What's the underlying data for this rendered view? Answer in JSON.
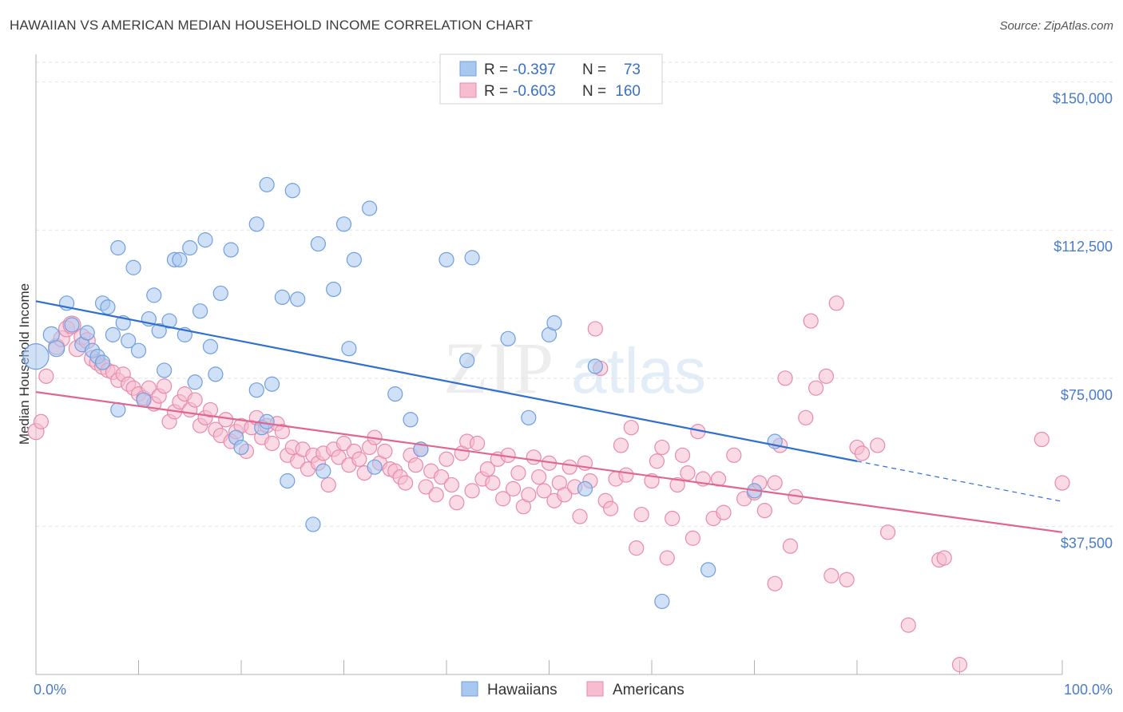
{
  "header": {
    "title": "HAWAIIAN VS AMERICAN MEDIAN HOUSEHOLD INCOME CORRELATION CHART",
    "source": "Source: ZipAtlas.com"
  },
  "legend_top": {
    "rows": [
      {
        "r_label": "R =",
        "r_value": "-0.397",
        "n_label": "N =",
        "n_value": "73"
      },
      {
        "r_label": "R =",
        "r_value": "-0.603",
        "n_label": "N =",
        "n_value": "160"
      }
    ]
  },
  "watermark": {
    "zip": "ZIP",
    "atlas": "atlas"
  },
  "colors": {
    "hawaiians_fill": "#a9c8f0",
    "hawaiians_stroke": "#6f9fe0",
    "hawaiians_line": "#2e6fd0",
    "americans_fill": "#f6bcd0",
    "americans_stroke": "#e98aaa",
    "americans_line": "#e06690"
  },
  "chart_data": {
    "type": "scatter",
    "title": "HAWAIIAN VS AMERICAN MEDIAN HOUSEHOLD INCOME CORRELATION CHART",
    "xlabel": "",
    "ylabel": "Median Household Income",
    "xlim": [
      0,
      100
    ],
    "ylim": [
      0,
      157000
    ],
    "y_ticks": [
      {
        "value": 37500,
        "label": "$37,500"
      },
      {
        "value": 75000,
        "label": "$75,000"
      },
      {
        "value": 112500,
        "label": "$112,500"
      },
      {
        "value": 150000,
        "label": "$150,000"
      }
    ],
    "x_tick_labels": {
      "left": "0.0%",
      "right": "100.0%"
    },
    "grid": true,
    "legend_position": "bottom",
    "series": [
      {
        "name": "Hawaiians",
        "r": -0.397,
        "n": 73,
        "trend": {
          "x0": 0,
          "y0": 94500,
          "x1": 80,
          "y1": 54000,
          "dash_to": 100,
          "dash_y": 43800
        },
        "points": [
          [
            0,
            80500,
            16
          ],
          [
            1.5,
            86000,
            10
          ],
          [
            2,
            82500,
            10
          ],
          [
            3,
            94000,
            9
          ],
          [
            3.5,
            88500,
            9
          ],
          [
            4.5,
            83500,
            9
          ],
          [
            5,
            86500,
            9
          ],
          [
            5.5,
            82000,
            9
          ],
          [
            6,
            80500,
            9
          ],
          [
            6.5,
            79000,
            9
          ],
          [
            6.5,
            94000,
            9
          ],
          [
            7,
            93000,
            9
          ],
          [
            7.5,
            86000,
            9
          ],
          [
            8,
            67000,
            9
          ],
          [
            8,
            108000,
            9
          ],
          [
            8.5,
            89000,
            9
          ],
          [
            9,
            84500,
            9
          ],
          [
            9.5,
            103000,
            9
          ],
          [
            10,
            82000,
            9
          ],
          [
            11,
            90000,
            9
          ],
          [
            10.5,
            69500,
            9
          ],
          [
            12,
            87000,
            9
          ],
          [
            11.5,
            96000,
            9
          ],
          [
            12.5,
            77000,
            9
          ],
          [
            13,
            89500,
            9
          ],
          [
            13.5,
            105000,
            9
          ],
          [
            14,
            105000,
            9
          ],
          [
            14.5,
            86000,
            9
          ],
          [
            15,
            108000,
            9
          ],
          [
            15.5,
            74000,
            9
          ],
          [
            16,
            92000,
            9
          ],
          [
            16.5,
            110000,
            9
          ],
          [
            17,
            83000,
            9
          ],
          [
            17.5,
            76000,
            9
          ],
          [
            18,
            96500,
            9
          ],
          [
            19,
            107500,
            9
          ],
          [
            19.5,
            60000,
            9
          ],
          [
            20,
            57500,
            9
          ],
          [
            21.5,
            72000,
            9
          ],
          [
            21.5,
            114000,
            9
          ],
          [
            22,
            62500,
            9
          ],
          [
            22.5,
            64000,
            9
          ],
          [
            22.5,
            124000,
            9
          ],
          [
            23,
            73500,
            9
          ],
          [
            24,
            95500,
            9
          ],
          [
            24.5,
            49000,
            9
          ],
          [
            25,
            122500,
            9
          ],
          [
            25.5,
            95000,
            9
          ],
          [
            27,
            38000,
            9
          ],
          [
            27.5,
            109000,
            9
          ],
          [
            28,
            51500,
            9
          ],
          [
            29,
            97500,
            9
          ],
          [
            30,
            114000,
            9
          ],
          [
            30.5,
            82500,
            9
          ],
          [
            31,
            105000,
            9
          ],
          [
            32.5,
            118000,
            9
          ],
          [
            33,
            52500,
            9
          ],
          [
            35,
            71000,
            9
          ],
          [
            36.5,
            64500,
            9
          ],
          [
            37.5,
            57000,
            9
          ],
          [
            40,
            105000,
            9
          ],
          [
            42,
            79500,
            9
          ],
          [
            42.5,
            105500,
            9
          ],
          [
            46,
            85000,
            9
          ],
          [
            48,
            65000,
            9
          ],
          [
            50,
            86000,
            9
          ],
          [
            50.5,
            89000,
            9
          ],
          [
            53.5,
            47000,
            9
          ],
          [
            54.5,
            78000,
            9
          ],
          [
            61,
            18500,
            9
          ],
          [
            65.5,
            26500,
            9
          ],
          [
            70,
            46500,
            9
          ],
          [
            72,
            59000,
            9
          ]
        ]
      },
      {
        "name": "Americans",
        "r": -0.603,
        "n": 160,
        "trend": {
          "x0": 0,
          "y0": 71500,
          "x1": 100,
          "y1": 36000
        },
        "points": [
          [
            0,
            61500,
            10
          ],
          [
            0.5,
            64000,
            9
          ],
          [
            1,
            75500,
            9
          ],
          [
            2,
            83000,
            10
          ],
          [
            2.5,
            85000,
            10
          ],
          [
            3,
            87500,
            10
          ],
          [
            3.5,
            88500,
            11
          ],
          [
            4,
            82500,
            10
          ],
          [
            4.5,
            85500,
            10
          ],
          [
            5,
            84500,
            10
          ],
          [
            5.5,
            80000,
            10
          ],
          [
            6,
            79000,
            10
          ],
          [
            6.5,
            78000,
            10
          ],
          [
            7,
            77000,
            9
          ],
          [
            7.5,
            76500,
            9
          ],
          [
            8,
            74500,
            9
          ],
          [
            8.5,
            76000,
            9
          ],
          [
            9,
            73500,
            9
          ],
          [
            9.5,
            72500,
            9
          ],
          [
            10,
            71000,
            9
          ],
          [
            10.5,
            70000,
            9
          ],
          [
            11,
            72500,
            9
          ],
          [
            11.5,
            68500,
            9
          ],
          [
            12,
            70500,
            9
          ],
          [
            12.5,
            73000,
            9
          ],
          [
            13,
            64000,
            9
          ],
          [
            13.5,
            66500,
            9
          ],
          [
            14,
            69000,
            9
          ],
          [
            14.5,
            71000,
            9
          ],
          [
            15,
            67000,
            9
          ],
          [
            15.5,
            69500,
            9
          ],
          [
            16,
            63000,
            9
          ],
          [
            16.5,
            65000,
            9
          ],
          [
            17,
            67000,
            9
          ],
          [
            17.5,
            62000,
            9
          ],
          [
            18,
            60500,
            9
          ],
          [
            18.5,
            64500,
            9
          ],
          [
            19,
            59000,
            9
          ],
          [
            19.5,
            61500,
            9
          ],
          [
            20,
            63000,
            9
          ],
          [
            20.5,
            56500,
            9
          ],
          [
            21,
            62500,
            9
          ],
          [
            21.5,
            65000,
            9
          ],
          [
            22,
            60000,
            9
          ],
          [
            22.5,
            63000,
            9
          ],
          [
            23,
            58500,
            9
          ],
          [
            23.5,
            63500,
            9
          ],
          [
            24,
            61500,
            9
          ],
          [
            24.5,
            55500,
            9
          ],
          [
            25,
            57500,
            9
          ],
          [
            25.5,
            54000,
            9
          ],
          [
            26,
            57000,
            9
          ],
          [
            26.5,
            52000,
            9
          ],
          [
            27,
            55500,
            9
          ],
          [
            27.5,
            53500,
            9
          ],
          [
            28,
            56000,
            9
          ],
          [
            28.5,
            48000,
            9
          ],
          [
            29,
            57000,
            9
          ],
          [
            29.5,
            55000,
            9
          ],
          [
            30,
            58500,
            9
          ],
          [
            30.5,
            53000,
            9
          ],
          [
            31,
            56500,
            9
          ],
          [
            31.5,
            54500,
            9
          ],
          [
            32,
            51000,
            9
          ],
          [
            32.5,
            57500,
            9
          ],
          [
            33,
            60000,
            9
          ],
          [
            33.5,
            53500,
            9
          ],
          [
            34,
            56500,
            9
          ],
          [
            34.5,
            52000,
            9
          ],
          [
            35,
            51500,
            9
          ],
          [
            35.5,
            50000,
            9
          ],
          [
            36,
            48500,
            9
          ],
          [
            36.5,
            55500,
            9
          ],
          [
            37,
            53000,
            9
          ],
          [
            37.5,
            57000,
            9
          ],
          [
            38,
            47500,
            9
          ],
          [
            38.5,
            51500,
            9
          ],
          [
            39,
            45500,
            9
          ],
          [
            39.5,
            50000,
            9
          ],
          [
            40,
            54500,
            9
          ],
          [
            40.5,
            48000,
            9
          ],
          [
            41,
            43500,
            9
          ],
          [
            41.5,
            56000,
            9
          ],
          [
            42,
            59000,
            9
          ],
          [
            42.5,
            46500,
            9
          ],
          [
            43,
            58500,
            9
          ],
          [
            43.5,
            49500,
            9
          ],
          [
            44,
            52000,
            9
          ],
          [
            44.5,
            48500,
            9
          ],
          [
            45,
            54500,
            9
          ],
          [
            45.5,
            44500,
            9
          ],
          [
            46,
            55500,
            9
          ],
          [
            46.5,
            47000,
            9
          ],
          [
            47,
            51000,
            9
          ],
          [
            47.5,
            42500,
            9
          ],
          [
            48,
            45500,
            9
          ],
          [
            48.5,
            55000,
            9
          ],
          [
            49,
            50000,
            9
          ],
          [
            49.5,
            46500,
            9
          ],
          [
            50,
            53500,
            9
          ],
          [
            50.5,
            44000,
            9
          ],
          [
            51,
            48500,
            9
          ],
          [
            51.5,
            45500,
            9
          ],
          [
            52,
            52500,
            9
          ],
          [
            52.5,
            47500,
            9
          ],
          [
            53,
            40000,
            9
          ],
          [
            53.5,
            53500,
            9
          ],
          [
            54,
            49000,
            9
          ],
          [
            54.5,
            87500,
            9
          ],
          [
            55,
            77500,
            9
          ],
          [
            55.5,
            44000,
            9
          ],
          [
            56,
            42000,
            9
          ],
          [
            56.5,
            49500,
            9
          ],
          [
            57,
            58000,
            9
          ],
          [
            57.5,
            50500,
            9
          ],
          [
            58,
            62500,
            9
          ],
          [
            58.5,
            32000,
            9
          ],
          [
            59,
            40500,
            9
          ],
          [
            60,
            49000,
            9
          ],
          [
            60.5,
            54000,
            9
          ],
          [
            61,
            57500,
            9
          ],
          [
            61.5,
            29500,
            9
          ],
          [
            62,
            39500,
            9
          ],
          [
            62.5,
            48000,
            9
          ],
          [
            63,
            55500,
            9
          ],
          [
            63.5,
            51000,
            9
          ],
          [
            64,
            34500,
            9
          ],
          [
            64.5,
            61500,
            9
          ],
          [
            65,
            49500,
            9
          ],
          [
            66,
            39500,
            9
          ],
          [
            66.5,
            49500,
            9
          ],
          [
            67,
            41000,
            9
          ],
          [
            68,
            55500,
            9
          ],
          [
            69,
            44500,
            9
          ],
          [
            70,
            46000,
            9
          ],
          [
            70.5,
            48500,
            9
          ],
          [
            71,
            41500,
            9
          ],
          [
            72,
            23000,
            9
          ],
          [
            72.5,
            58000,
            9
          ],
          [
            73,
            75000,
            9
          ],
          [
            73.5,
            32500,
            9
          ],
          [
            74,
            45000,
            9
          ],
          [
            75,
            65000,
            9
          ],
          [
            75.5,
            89500,
            9
          ],
          [
            76,
            72500,
            9
          ],
          [
            77,
            75500,
            9
          ],
          [
            77.5,
            25000,
            9
          ],
          [
            78,
            94000,
            9
          ],
          [
            79,
            24000,
            9
          ],
          [
            80,
            57500,
            9
          ],
          [
            80.5,
            56000,
            9
          ],
          [
            82,
            58000,
            9
          ],
          [
            83,
            36000,
            9
          ],
          [
            85,
            12500,
            9
          ],
          [
            88,
            29000,
            9
          ],
          [
            88.5,
            29500,
            9
          ],
          [
            90,
            2500,
            9
          ],
          [
            98,
            59500,
            9
          ],
          [
            100,
            48500,
            9
          ],
          [
            72,
            48500,
            9
          ]
        ]
      }
    ]
  }
}
